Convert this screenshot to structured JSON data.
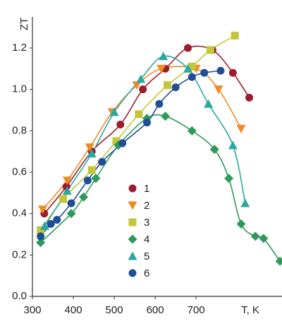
{
  "chart_data": {
    "type": "scatter",
    "y_label": "ZT",
    "x_label": "T, K",
    "xlim": [
      300,
      910
    ],
    "ylim": [
      0,
      1.35
    ],
    "xticks": [
      300,
      400,
      500,
      600,
      700
    ],
    "yticks": [
      {
        "value": 0,
        "label": "0.0"
      },
      0.2,
      0.4,
      0.6,
      0.8,
      {
        "value": 1,
        "label": "1.0"
      },
      1.2
    ],
    "series": [
      {
        "name": "1",
        "color": "#9e1b2e",
        "marker": "circle",
        "x": [
          329,
          383,
          445,
          515,
          570,
          625,
          680,
          740,
          790,
          830
        ],
        "values": [
          0.4,
          0.53,
          0.7,
          0.83,
          1.0,
          1.1,
          1.2,
          1.19,
          1.08,
          0.96
        ]
      },
      {
        "name": "2",
        "color": "#f08a24",
        "marker": "triangle-down",
        "x": [
          325,
          385,
          440,
          495,
          555,
          615,
          700,
          755,
          810
        ],
        "values": [
          0.42,
          0.56,
          0.72,
          0.89,
          1.02,
          1.1,
          1.1,
          1.0,
          0.81
        ]
      },
      {
        "name": "3",
        "color": "#c5c53a",
        "marker": "square",
        "x": [
          320,
          375,
          445,
          505,
          560,
          630,
          690,
          735,
          795
        ],
        "values": [
          0.32,
          0.47,
          0.61,
          0.75,
          0.88,
          1.02,
          1.11,
          1.19,
          1.26
        ]
      },
      {
        "name": "4",
        "color": "#2e9a5a",
        "marker": "diamond",
        "x": [
          320,
          395,
          425,
          455,
          510,
          580,
          625,
          690,
          745,
          780,
          810,
          845,
          865,
          905
        ],
        "values": [
          0.26,
          0.4,
          0.48,
          0.57,
          0.73,
          0.86,
          0.87,
          0.8,
          0.71,
          0.57,
          0.35,
          0.29,
          0.28,
          0.17
        ]
      },
      {
        "name": "5",
        "color": "#2aa8a0",
        "marker": "triangle-up",
        "x": [
          330,
          385,
          445,
          500,
          565,
          620,
          680,
          730,
          790,
          820
        ],
        "values": [
          0.34,
          0.51,
          0.69,
          0.89,
          1.05,
          1.16,
          1.1,
          0.93,
          0.73,
          0.45
        ]
      },
      {
        "name": "6",
        "color": "#1f4e96",
        "marker": "circle",
        "x": [
          320,
          345,
          360,
          395,
          435,
          470,
          520,
          580,
          610,
          650,
          690,
          720,
          760
        ],
        "values": [
          0.29,
          0.35,
          0.37,
          0.45,
          0.56,
          0.65,
          0.74,
          0.84,
          0.93,
          1.01,
          1.06,
          1.08,
          1.09
        ]
      }
    ]
  }
}
